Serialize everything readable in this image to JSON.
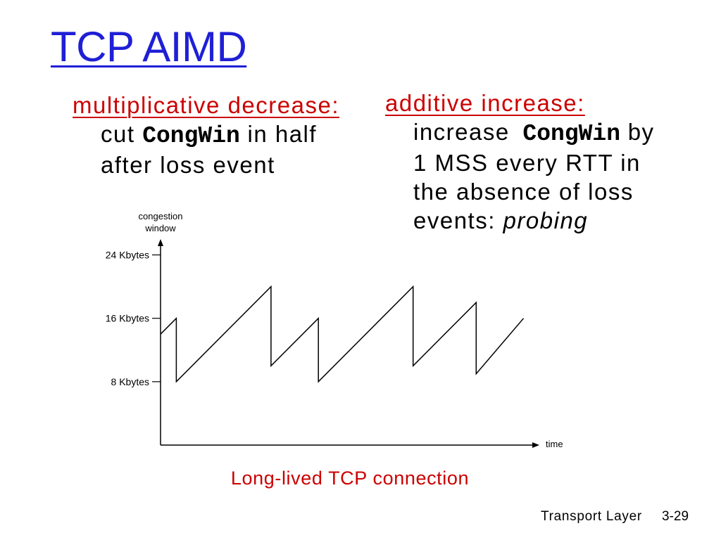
{
  "slide": {
    "title": "TCP AIMD",
    "colors": {
      "title": "#1f1fd6",
      "accent": "#cc0000",
      "text": "#000000",
      "background": "#ffffff"
    }
  },
  "left": {
    "heading": "multiplicative decrease:",
    "line1": {
      "pre": "cut",
      "code": "CongWin",
      "post": "in half"
    },
    "line2": "after loss event"
  },
  "right": {
    "heading": "additive increase:",
    "line1": {
      "pre": "increase",
      "code": "CongWin",
      "post": "by"
    },
    "line2": "1 MSS every RTT in",
    "line3": "the absence of loss",
    "line4": {
      "pre": "events:",
      "emph": "probing"
    }
  },
  "caption": "Long-lived TCP connection",
  "footer": {
    "section": "Transport Layer",
    "page": "3-29"
  },
  "chart_data": {
    "type": "line",
    "xlabel": "time",
    "ylabel": "congestion window",
    "xlim": [
      0,
      48
    ],
    "ylim": [
      0,
      26
    ],
    "grid": false,
    "yticks": [
      {
        "value": 24,
        "label": "24 Kbytes"
      },
      {
        "value": 16,
        "label": "16 Kbytes"
      },
      {
        "value": 8,
        "label": "8 Kbytes"
      }
    ],
    "series": [
      {
        "x": [
          0,
          2,
          2,
          14,
          14,
          20,
          20,
          32,
          32,
          40,
          40,
          46
        ],
        "y": [
          14,
          16,
          8,
          20,
          10,
          16,
          8,
          20,
          10,
          18,
          9,
          16
        ],
        "color": "#000000"
      }
    ]
  }
}
